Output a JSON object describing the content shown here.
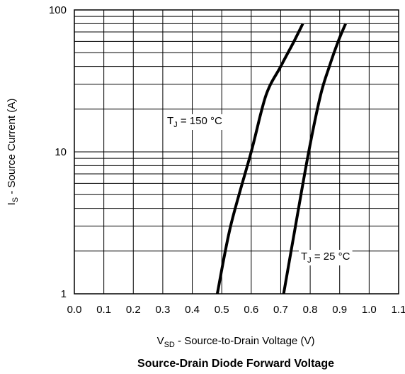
{
  "chart_data": {
    "type": "line",
    "title": "Source-Drain Diode Forward Voltage",
    "xlabel": {
      "symbol": "V",
      "subscript": "SD",
      "text": " - Source-to-Drain Voltage (V)"
    },
    "ylabel": {
      "symbol": "I",
      "subscript": "S",
      "text": " - Source Current (A)"
    },
    "xlim": [
      0.0,
      1.1
    ],
    "ylim": [
      1,
      100
    ],
    "yscale": "log",
    "grid": true,
    "x_ticks": [
      "0.0",
      "0.1",
      "0.2",
      "0.3",
      "0.4",
      "0.5",
      "0.6",
      "0.7",
      "0.8",
      "0.9",
      "1.0",
      "1.1"
    ],
    "y_ticks": [
      "1",
      "10",
      "100"
    ],
    "series": [
      {
        "name": {
          "symbol": "T",
          "subscript": "J",
          "text": " = 150 °C"
        },
        "points": [
          [
            0.485,
            1
          ],
          [
            0.53,
            3
          ],
          [
            0.6,
            10
          ],
          [
            0.65,
            25
          ],
          [
            0.7,
            40
          ],
          [
            0.745,
            60
          ],
          [
            0.775,
            80
          ]
        ]
      },
      {
        "name": {
          "symbol": "T",
          "subscript": "J",
          "text": " = 25 °C"
        },
        "points": [
          [
            0.71,
            1
          ],
          [
            0.75,
            3
          ],
          [
            0.795,
            10
          ],
          [
            0.835,
            25
          ],
          [
            0.865,
            40
          ],
          [
            0.895,
            60
          ],
          [
            0.92,
            80
          ]
        ]
      }
    ],
    "curve_color": "#000000",
    "grid_color": "#000000"
  }
}
